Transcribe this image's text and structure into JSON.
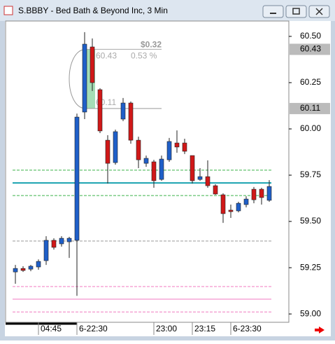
{
  "window_title": "S.BBBY - Bed Bath & Beyond Inc, 3 Min",
  "chart_data": {
    "type": "candlestick",
    "categories": [
      null,
      null,
      null,
      "04:45",
      null,
      null,
      null,
      null,
      "6-22:30",
      null,
      null,
      null,
      null,
      null,
      null,
      null,
      null,
      null,
      "23:00",
      null,
      null,
      null,
      null,
      "23:15",
      null,
      null,
      null,
      null,
      "6-23:30",
      null,
      null,
      null,
      null,
      null
    ],
    "open": [
      59.227,
      59.246,
      59.242,
      59.254,
      59.288,
      59.398,
      59.379,
      59.39,
      59.398,
      60.091,
      60.443,
      60.212,
      59.939,
      59.818,
      60.053,
      60.14,
      59.939,
      59.814,
      59.822,
      59.727,
      59.833,
      59.924,
      59.924,
      59.856,
      59.727,
      59.742,
      59.693,
      59.644,
      59.561,
      59.557,
      59.591,
      59.674,
      59.674,
      59.614
    ],
    "high": [
      59.265,
      59.258,
      59.265,
      59.295,
      59.42,
      59.409,
      59.42,
      59.417,
      60.083,
      60.523,
      60.489,
      60.22,
      59.966,
      59.996,
      60.167,
      60.148,
      59.958,
      59.856,
      59.833,
      59.856,
      59.951,
      59.992,
      59.947,
      59.856,
      59.788,
      59.83,
      59.701,
      59.652,
      59.591,
      59.606,
      59.636,
      59.686,
      59.682,
      59.723
    ],
    "low": [
      59.163,
      59.227,
      59.231,
      59.239,
      59.265,
      59.348,
      59.364,
      59.303,
      59.098,
      60.053,
      60.205,
      59.977,
      59.705,
      59.807,
      60.042,
      59.92,
      59.788,
      59.795,
      59.682,
      59.72,
      59.822,
      59.871,
      59.864,
      59.705,
      59.72,
      59.682,
      59.644,
      59.492,
      59.519,
      59.549,
      59.576,
      59.598,
      59.591,
      59.606
    ],
    "close": [
      59.246,
      59.235,
      59.258,
      59.284,
      59.398,
      59.36,
      59.409,
      59.409,
      60.064,
      60.458,
      60.25,
      59.989,
      59.814,
      59.985,
      60.14,
      59.939,
      59.833,
      59.841,
      59.72,
      59.837,
      59.932,
      59.902,
      59.879,
      59.72,
      59.742,
      59.693,
      59.648,
      59.542,
      59.553,
      59.598,
      59.621,
      59.617,
      59.629,
      59.689
    ],
    "up_color": "#1f5fc8",
    "down_color": "#d01818",
    "ylim": [
      58.955,
      60.583
    ],
    "yticks": [
      {
        "value": 59.0,
        "label": "59.00"
      },
      {
        "value": 59.25,
        "label": "59.25"
      },
      {
        "value": 59.5,
        "label": "59.50"
      },
      {
        "value": 59.75,
        "label": "59.75"
      },
      {
        "value": 60.0,
        "label": "60.00"
      },
      {
        "value": 60.25,
        "label": "60.25"
      },
      {
        "value": 60.5,
        "label": "60.50"
      }
    ],
    "levels": [
      {
        "value": 59.777,
        "color": "#3cb44b",
        "style": "dashed"
      },
      {
        "value": 59.708,
        "color": "#1aa3b0",
        "style": "solid"
      },
      {
        "value": 59.64,
        "color": "#3cb44b",
        "style": "dashed"
      },
      {
        "value": 59.394,
        "color": "#999999",
        "style": "dashed"
      },
      {
        "value": 59.148,
        "color": "#f07ac0",
        "style": "dashed"
      },
      {
        "value": 59.08,
        "color": "#f07ac0",
        "style": "solid"
      },
      {
        "value": 59.011,
        "color": "#f07ac0",
        "style": "dashed"
      }
    ],
    "measure": {
      "from": 60.43,
      "to": 60.11,
      "change": "$0.32",
      "percent": "0.53 %"
    }
  }
}
